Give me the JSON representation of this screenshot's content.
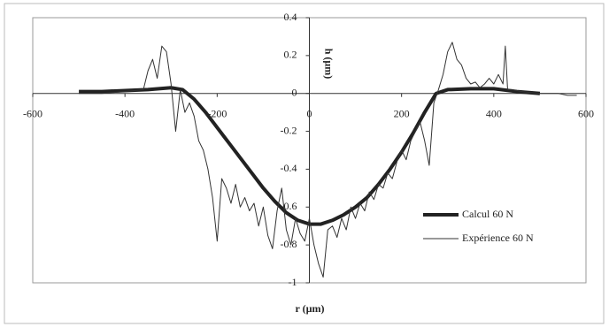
{
  "chart_data": {
    "type": "line",
    "x_label": "r (µm)",
    "y_label": "h (µm)",
    "xlim": [
      -600,
      600
    ],
    "xticks": [
      -600,
      -400,
      -200,
      0,
      200,
      400,
      600
    ],
    "ylim": [
      -1,
      0.4
    ],
    "yticks": [
      0.4,
      0.2,
      0,
      -0.2,
      -0.4,
      -0.6,
      -0.8,
      -1
    ],
    "legend": "lower right",
    "series": [
      {
        "name": "Calcul 60 N",
        "color": "#222222",
        "width": 4,
        "x": [
          -500,
          -450,
          -400,
          -350,
          -300,
          -275,
          -250,
          -225,
          -200,
          -175,
          -150,
          -125,
          -100,
          -75,
          -50,
          -25,
          0,
          25,
          50,
          75,
          100,
          125,
          150,
          175,
          200,
          225,
          250,
          275,
          300,
          350,
          400,
          450,
          500
        ],
        "values": [
          0.01,
          0.01,
          0.015,
          0.02,
          0.03,
          0.02,
          -0.03,
          -0.1,
          -0.18,
          -0.26,
          -0.34,
          -0.42,
          -0.5,
          -0.57,
          -0.63,
          -0.67,
          -0.69,
          -0.69,
          -0.67,
          -0.64,
          -0.6,
          -0.55,
          -0.48,
          -0.4,
          -0.31,
          -0.21,
          -0.1,
          0.0,
          0.02,
          0.025,
          0.025,
          0.01,
          0
        ]
      },
      {
        "name": "Expérience 60 N",
        "color": "#333333",
        "width": 1,
        "x": [
          -500,
          -450,
          -400,
          -360,
          -350,
          -340,
          -330,
          -320,
          -310,
          -300,
          -290,
          -280,
          -270,
          -260,
          -250,
          -240,
          -230,
          -220,
          -210,
          -200,
          -190,
          -180,
          -170,
          -160,
          -150,
          -140,
          -130,
          -120,
          -110,
          -100,
          -90,
          -80,
          -70,
          -60,
          -50,
          -40,
          -30,
          -20,
          -10,
          0,
          10,
          20,
          30,
          40,
          50,
          60,
          70,
          80,
          90,
          100,
          110,
          120,
          130,
          140,
          150,
          160,
          170,
          180,
          190,
          200,
          210,
          220,
          230,
          240,
          250,
          260,
          270,
          280,
          290,
          300,
          310,
          320,
          330,
          340,
          350,
          360,
          370,
          380,
          390,
          400,
          410,
          420,
          425,
          430,
          440,
          460,
          500,
          540,
          560,
          580
        ],
        "values": [
          0,
          0,
          0.01,
          0.02,
          0.12,
          0.18,
          0.08,
          0.25,
          0.22,
          0.05,
          -0.2,
          0.02,
          -0.1,
          -0.05,
          -0.12,
          -0.25,
          -0.3,
          -0.4,
          -0.55,
          -0.78,
          -0.45,
          -0.5,
          -0.58,
          -0.48,
          -0.6,
          -0.55,
          -0.62,
          -0.58,
          -0.7,
          -0.6,
          -0.75,
          -0.82,
          -0.62,
          -0.5,
          -0.72,
          -0.8,
          -0.66,
          -0.74,
          -0.78,
          -0.66,
          -0.8,
          -0.9,
          -0.97,
          -0.72,
          -0.7,
          -0.76,
          -0.66,
          -0.72,
          -0.6,
          -0.66,
          -0.58,
          -0.62,
          -0.52,
          -0.56,
          -0.48,
          -0.5,
          -0.42,
          -0.45,
          -0.36,
          -0.3,
          -0.35,
          -0.25,
          -0.2,
          -0.15,
          -0.25,
          -0.38,
          -0.05,
          0.02,
          0.1,
          0.22,
          0.27,
          0.18,
          0.15,
          0.08,
          0.05,
          0.06,
          0.03,
          0.05,
          0.08,
          0.05,
          0.1,
          0.05,
          0.25,
          0.02,
          0.02,
          0.01,
          0,
          0,
          -0.01,
          -0.01
        ]
      }
    ]
  }
}
